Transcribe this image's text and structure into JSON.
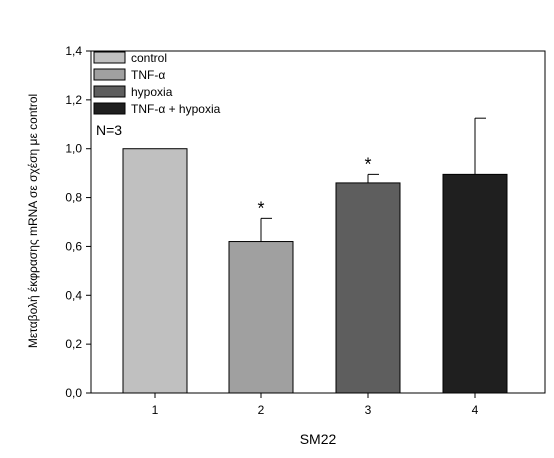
{
  "chart_data": {
    "type": "bar",
    "title": "",
    "xlabel": "SM22",
    "ylabel": "Μεταβολή έκφρασης mRNA σε σχέση με control",
    "categories": [
      "1",
      "2",
      "3",
      "4"
    ],
    "values": [
      1.0,
      0.62,
      0.86,
      0.895
    ],
    "errors_upper": [
      0.0,
      0.095,
      0.035,
      0.23
    ],
    "significance": [
      "",
      "*",
      "*",
      ""
    ],
    "bar_colors": [
      "#c0c0c0",
      "#a0a0a0",
      "#5e5e5e",
      "#1f1f1f"
    ],
    "legend": [
      {
        "name": "control",
        "color": "#c0c0c0"
      },
      {
        "name": "TNF-α",
        "color": "#a0a0a0"
      },
      {
        "name": "hypoxia",
        "color": "#5e5e5e"
      },
      {
        "name": "TNF-α + hypoxia",
        "color": "#1f1f1f"
      }
    ],
    "legend_position": "top-left",
    "annotation": "N=3",
    "ylim": [
      0,
      1.4
    ],
    "yticks": [
      "0,0",
      "0,2",
      "0,4",
      "0,6",
      "0,8",
      "1,0",
      "1,2",
      "1,4"
    ],
    "grid": false
  }
}
